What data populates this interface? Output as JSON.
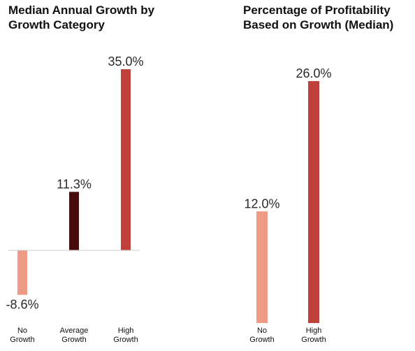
{
  "chart_data": [
    {
      "type": "bar",
      "title": "Median Annual Growth by Growth Category",
      "categories": [
        [
          "No",
          "Growth"
        ],
        [
          "Average",
          "Growth"
        ],
        [
          "High",
          "Growth"
        ]
      ],
      "values": [
        -8.6,
        11.3,
        35.0
      ],
      "value_labels": [
        "-8.6%",
        "11.3%",
        "35.0%"
      ],
      "colors": [
        "#ef9a85",
        "#4a0a0c",
        "#c0403a"
      ],
      "ylim": [
        -8.6,
        35.0
      ],
      "xlabel": "",
      "ylabel": "",
      "grid": false,
      "legend": "none"
    },
    {
      "type": "bar",
      "title": "Percentage of Profitability Based on Growth (Median)",
      "categories": [
        [
          "No",
          "Growth"
        ],
        [
          "High",
          "Growth"
        ]
      ],
      "values": [
        12.0,
        26.0
      ],
      "value_labels": [
        "12.0%",
        "26.0%"
      ],
      "colors": [
        "#ef9a85",
        "#c0403a"
      ],
      "ylim": [
        0,
        26.0
      ],
      "xlabel": "",
      "ylabel": "",
      "grid": false,
      "legend": "none"
    }
  ],
  "colors": {
    "axis_line": "#cccccc"
  }
}
